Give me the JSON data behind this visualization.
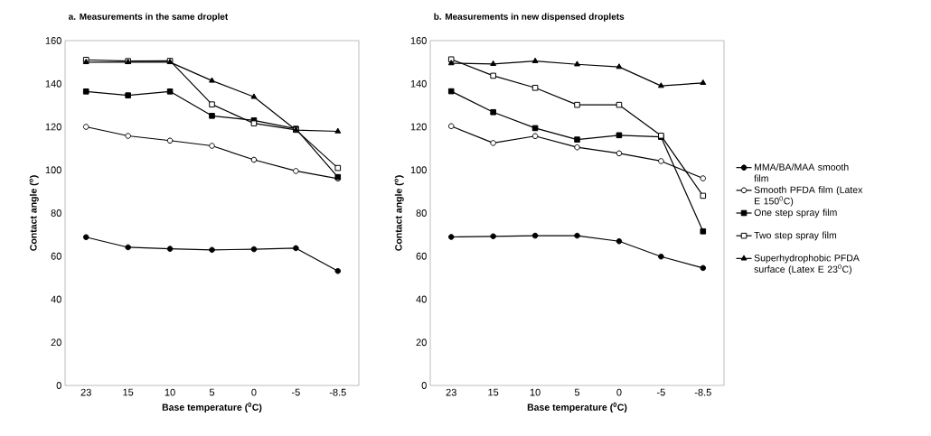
{
  "chart_data": [
    {
      "type": "line",
      "title": "a. Measurements in the same droplet",
      "xlabel": "Base temperature ($^{0}$C)",
      "ylabel": "Contact angle ($^{o}$)",
      "categories": [
        "23",
        "15",
        "10",
        "5",
        "0",
        "-5",
        "-8.5"
      ],
      "ylim": [
        0,
        160
      ],
      "yticks": [
        0,
        20,
        40,
        60,
        80,
        100,
        120,
        140,
        160
      ],
      "grid": false,
      "line_style": "solid",
      "series": [
        {
          "color": "#000000",
          "marker": "circle",
          "values": [
            68.8,
            64.1,
            63.4,
            62.9,
            63.2,
            63.7,
            53.1
          ]
        },
        {
          "color": "#ffffff",
          "marker": "circle",
          "values": [
            120.0,
            115.8,
            113.6,
            111.2,
            104.7,
            99.5,
            96.0
          ]
        },
        {
          "color": "#000000",
          "marker": "square",
          "values": [
            136.4,
            134.6,
            136.4,
            125.1,
            123.0,
            119.1,
            96.7
          ]
        },
        {
          "color": "#ffffff",
          "marker": "square",
          "values": [
            151.1,
            150.5,
            150.6,
            130.4,
            121.6,
            118.6,
            100.9
          ]
        },
        {
          "color": "#000000",
          "marker": "triangle",
          "values": [
            150.0,
            150.0,
            150.0,
            141.4,
            133.9,
            118.5,
            117.9
          ]
        }
      ]
    },
    {
      "type": "line",
      "title": "b. Measurements in new dispensed droplets",
      "xlabel": "Base temperature ($^{0}$C)",
      "ylabel": "Contact angle ($^{o}$)",
      "categories": [
        "23",
        "15",
        "10",
        "5",
        "0",
        "-5",
        "-8.5"
      ],
      "ylim": [
        0,
        160
      ],
      "yticks": [
        0,
        20,
        40,
        60,
        80,
        100,
        120,
        140,
        160
      ],
      "grid": false,
      "line_style": "solid",
      "legend": "right",
      "series": [
        {
          "name": "MMA/BA/MAA smooth film",
          "color": "#000000",
          "marker": "circle",
          "values": [
            68.9,
            69.2,
            69.5,
            69.5,
            66.9,
            59.8,
            54.5
          ]
        },
        {
          "name": "Smooth PFDA film (Latex E 150$^{0}$C)",
          "color": "#ffffff",
          "marker": "circle",
          "values": [
            120.3,
            112.5,
            115.7,
            110.5,
            107.7,
            104.1,
            96.1
          ]
        },
        {
          "name": "One step spray film",
          "color": "#000000",
          "marker": "square",
          "values": [
            136.5,
            126.8,
            119.4,
            114.1,
            116.1,
            115.3,
            71.5
          ]
        },
        {
          "name": "Two step spray film",
          "color": "#ffffff",
          "marker": "square",
          "values": [
            151.3,
            143.7,
            138.1,
            130.2,
            130.2,
            115.9,
            88.0
          ]
        },
        {
          "name": "Superhydrophobic PFDA surface (Latex E 23$^{0}$C)",
          "color": "#000000",
          "marker": "triangle",
          "values": [
            149.5,
            149.2,
            150.5,
            149.0,
            147.8,
            139.0,
            140.4
          ]
        }
      ]
    }
  ]
}
